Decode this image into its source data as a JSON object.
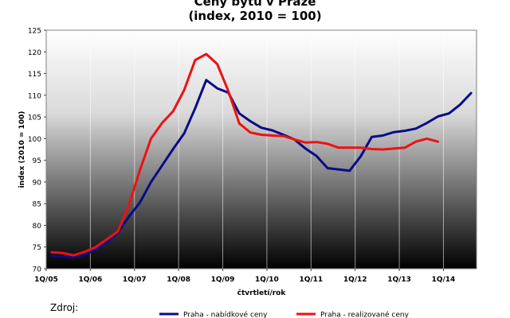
{
  "chart_data": {
    "type": "line",
    "title": "Ceny bytů v Praze",
    "subtitle": "(index, 2010 = 100)",
    "xlabel": "čtvrtletí/rok",
    "ylabel": "index (2010 = 100)",
    "ylim": [
      70,
      125
    ],
    "yticks": [
      70,
      75,
      80,
      85,
      90,
      95,
      100,
      105,
      110,
      115,
      120,
      125
    ],
    "x_tick_labels": [
      "1Q/05",
      "1Q/06",
      "1Q/07",
      "1Q/08",
      "1Q/09",
      "1Q/10",
      "1Q/11",
      "1Q/12",
      "1Q/13",
      "1Q/14"
    ],
    "grid": "vertical",
    "legend": "bottom",
    "background": "black-to-white vertical gradient",
    "colors": {
      "offer": "#0a0a8a",
      "realized": "#ee1111"
    },
    "series": [
      {
        "name": "Praha - nabídkové ceny",
        "color": "#0a0a8a",
        "x": [
          "1Q/05",
          "2Q/05",
          "3Q/05",
          "4Q/05",
          "1Q/06",
          "2Q/06",
          "3Q/06",
          "4Q/06",
          "1Q/07",
          "2Q/07",
          "3Q/07",
          "4Q/07",
          "1Q/08",
          "2Q/08",
          "3Q/08",
          "4Q/08",
          "1Q/09",
          "2Q/09",
          "3Q/09",
          "4Q/09",
          "1Q/10",
          "2Q/10",
          "3Q/10",
          "4Q/10",
          "1Q/11",
          "2Q/11",
          "3Q/11",
          "4Q/11",
          "1Q/12",
          "2Q/12",
          "3Q/12",
          "4Q/12",
          "1Q/13",
          "2Q/13",
          "3Q/13",
          "4Q/13",
          "1Q/14",
          "2Q/14",
          "3Q/14"
        ],
        "values": [
          73.0,
          72.8,
          72.6,
          73.2,
          74.5,
          76.0,
          78.3,
          82.0,
          85.3,
          90.0,
          93.8,
          97.6,
          101.2,
          107.0,
          113.5,
          111.6,
          110.6,
          105.8,
          104.0,
          102.5,
          101.9,
          100.9,
          99.8,
          97.7,
          96.0,
          93.2,
          92.9,
          92.6,
          95.9,
          100.4,
          100.7,
          101.5,
          101.8,
          102.3,
          103.6,
          105.1,
          105.8,
          107.8,
          110.5
        ]
      },
      {
        "name": "Praha - realizované ceny",
        "color": "#ee1111",
        "x": [
          "1Q/05",
          "2Q/05",
          "3Q/05",
          "4Q/05",
          "1Q/06",
          "2Q/06",
          "3Q/06",
          "4Q/06",
          "1Q/07",
          "2Q/07",
          "3Q/07",
          "4Q/07",
          "1Q/08",
          "2Q/08",
          "3Q/08",
          "4Q/08",
          "1Q/09",
          "2Q/09",
          "3Q/09",
          "4Q/09",
          "1Q/10",
          "2Q/10",
          "3Q/10",
          "4Q/10",
          "1Q/11",
          "2Q/11",
          "3Q/11",
          "4Q/11",
          "1Q/12",
          "2Q/12",
          "3Q/12",
          "4Q/12",
          "1Q/13",
          "2Q/13",
          "3Q/13",
          "4Q/13"
        ],
        "values": [
          73.8,
          73.6,
          73.1,
          73.9,
          75.0,
          76.8,
          78.6,
          84.7,
          92.8,
          100.0,
          103.6,
          106.3,
          111.2,
          118.1,
          119.5,
          117.2,
          111.0,
          103.5,
          101.4,
          100.9,
          100.7,
          100.6,
          99.8,
          99.1,
          99.2,
          98.8,
          97.9,
          97.9,
          97.9,
          97.6,
          97.5,
          97.7,
          97.9,
          99.3,
          100.0,
          99.3
        ]
      }
    ]
  },
  "source_label": "Zdroj:"
}
